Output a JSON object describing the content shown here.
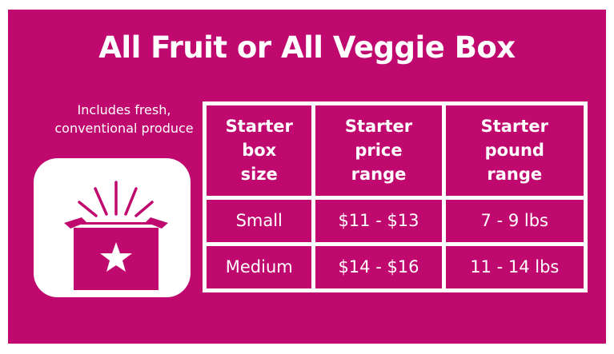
{
  "title": "All Fruit or All Veggie Box",
  "subtitle": [
    "Includes fresh,",
    "conventional produce"
  ],
  "icon": "open-box-star-icon",
  "colors": {
    "background": "#c0096f",
    "foreground": "#ffffff"
  },
  "table": {
    "headers": [
      [
        "Starter",
        "box",
        "size"
      ],
      [
        "Starter",
        "price",
        "range"
      ],
      [
        "Starter",
        "pound",
        "range"
      ]
    ],
    "rows": [
      [
        "Small",
        "$11 - $13",
        "7 - 9 lbs"
      ],
      [
        "Medium",
        "$14 - $16",
        "11 - 14 lbs"
      ]
    ]
  }
}
